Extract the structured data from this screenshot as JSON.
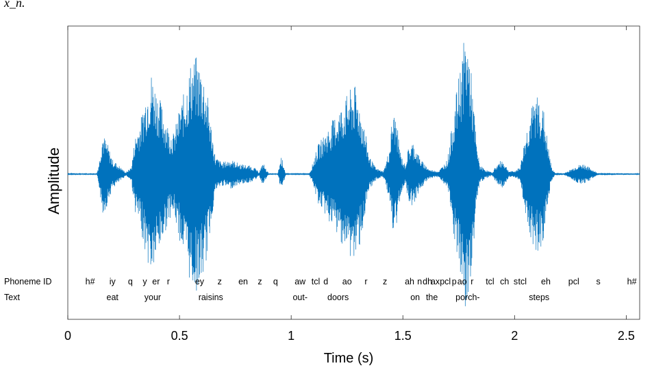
{
  "corner_text": "x_n.",
  "chart_data": {
    "type": "line",
    "title": "",
    "xlabel": "Time (s)",
    "ylabel": "Amplitude",
    "xlim": [
      0,
      2.56
    ],
    "xticks": [
      0,
      0.5,
      1,
      1.5,
      2,
      2.5
    ],
    "xtick_labels": [
      "0",
      "0.5",
      "1",
      "1.5",
      "2",
      "2.5"
    ],
    "grid": false,
    "series_color": "#0072BD",
    "row_labels": {
      "phoneme": "Phoneme ID",
      "text": "Text"
    },
    "phonemes": [
      {
        "t": 0.1,
        "label": "h#"
      },
      {
        "t": 0.2,
        "label": "iy"
      },
      {
        "t": 0.28,
        "label": "q"
      },
      {
        "t": 0.345,
        "label": "y"
      },
      {
        "t": 0.395,
        "label": "er"
      },
      {
        "t": 0.45,
        "label": "r"
      },
      {
        "t": 0.59,
        "label": "ey"
      },
      {
        "t": 0.68,
        "label": "z"
      },
      {
        "t": 0.785,
        "label": "en"
      },
      {
        "t": 0.86,
        "label": "z"
      },
      {
        "t": 0.93,
        "label": "q"
      },
      {
        "t": 1.04,
        "label": "aw"
      },
      {
        "t": 1.11,
        "label": "tcl"
      },
      {
        "t": 1.155,
        "label": "d"
      },
      {
        "t": 1.25,
        "label": "ao"
      },
      {
        "t": 1.335,
        "label": "r"
      },
      {
        "t": 1.42,
        "label": "z"
      },
      {
        "t": 1.53,
        "label": "ah"
      },
      {
        "t": 1.575,
        "label": "n"
      },
      {
        "t": 1.61,
        "label": "dh"
      },
      {
        "t": 1.645,
        "label": "ax"
      },
      {
        "t": 1.69,
        "label": "pcl"
      },
      {
        "t": 1.73,
        "label": "p"
      },
      {
        "t": 1.765,
        "label": "ao"
      },
      {
        "t": 1.81,
        "label": "r"
      },
      {
        "t": 1.89,
        "label": "tcl"
      },
      {
        "t": 1.955,
        "label": "ch"
      },
      {
        "t": 2.005,
        "label": "s"
      },
      {
        "t": 2.035,
        "label": "tcl"
      },
      {
        "t": 2.14,
        "label": "eh"
      },
      {
        "t": 2.265,
        "label": "pcl"
      },
      {
        "t": 2.375,
        "label": "s"
      },
      {
        "t": 2.525,
        "label": "h#"
      }
    ],
    "words": [
      {
        "t": 0.2,
        "label": "eat"
      },
      {
        "t": 0.38,
        "label": "your"
      },
      {
        "t": 0.64,
        "label": "raisins"
      },
      {
        "t": 1.04,
        "label": "out-"
      },
      {
        "t": 1.21,
        "label": "doors"
      },
      {
        "t": 1.555,
        "label": "on"
      },
      {
        "t": 1.63,
        "label": "the"
      },
      {
        "t": 1.79,
        "label": "porch-"
      },
      {
        "t": 2.11,
        "label": "steps"
      }
    ],
    "envelope": [
      [
        0.0,
        0.004
      ],
      [
        0.13,
        0.005
      ],
      [
        0.14,
        0.08
      ],
      [
        0.155,
        0.28
      ],
      [
        0.175,
        0.22
      ],
      [
        0.2,
        0.1
      ],
      [
        0.235,
        0.05
      ],
      [
        0.26,
        0.01
      ],
      [
        0.285,
        0.05
      ],
      [
        0.3,
        0.25
      ],
      [
        0.33,
        0.4
      ],
      [
        0.355,
        0.6
      ],
      [
        0.375,
        0.7
      ],
      [
        0.39,
        0.62
      ],
      [
        0.42,
        0.48
      ],
      [
        0.455,
        0.3
      ],
      [
        0.475,
        0.28
      ],
      [
        0.5,
        0.45
      ],
      [
        0.525,
        0.58
      ],
      [
        0.55,
        0.76
      ],
      [
        0.575,
        0.8
      ],
      [
        0.6,
        0.74
      ],
      [
        0.62,
        0.6
      ],
      [
        0.64,
        0.36
      ],
      [
        0.66,
        0.12
      ],
      [
        0.69,
        0.08
      ],
      [
        0.73,
        0.1
      ],
      [
        0.77,
        0.07
      ],
      [
        0.81,
        0.06
      ],
      [
        0.84,
        0.04
      ],
      [
        0.855,
        0.01
      ],
      [
        0.875,
        0.08
      ],
      [
        0.885,
        0.04
      ],
      [
        0.9,
        0.005
      ],
      [
        0.94,
        0.004
      ],
      [
        0.955,
        0.12
      ],
      [
        0.965,
        0.08
      ],
      [
        0.975,
        0.003
      ],
      [
        1.08,
        0.003
      ],
      [
        1.09,
        0.04
      ],
      [
        1.12,
        0.2
      ],
      [
        1.16,
        0.3
      ],
      [
        1.19,
        0.38
      ],
      [
        1.23,
        0.48
      ],
      [
        1.26,
        0.57
      ],
      [
        1.285,
        0.6
      ],
      [
        1.3,
        0.53
      ],
      [
        1.325,
        0.35
      ],
      [
        1.35,
        0.12
      ],
      [
        1.38,
        0.04
      ],
      [
        1.41,
        0.02
      ],
      [
        1.42,
        0.05
      ],
      [
        1.44,
        0.18
      ],
      [
        1.455,
        0.43
      ],
      [
        1.47,
        0.38
      ],
      [
        1.49,
        0.14
      ],
      [
        1.51,
        0.06
      ],
      [
        1.525,
        0.18
      ],
      [
        1.545,
        0.22
      ],
      [
        1.58,
        0.1
      ],
      [
        1.62,
        0.03
      ],
      [
        1.66,
        0.02
      ],
      [
        1.7,
        0.1
      ],
      [
        1.73,
        0.45
      ],
      [
        1.755,
        0.72
      ],
      [
        1.77,
        0.88
      ],
      [
        1.785,
        0.98
      ],
      [
        1.8,
        0.8
      ],
      [
        1.815,
        0.52
      ],
      [
        1.83,
        0.2
      ],
      [
        1.845,
        0.06
      ],
      [
        1.87,
        0.03
      ],
      [
        1.9,
        0.01
      ],
      [
        1.91,
        0.04
      ],
      [
        1.93,
        0.08
      ],
      [
        1.945,
        0.1
      ],
      [
        1.96,
        0.06
      ],
      [
        1.975,
        0.02
      ],
      [
        2.0,
        0.02
      ],
      [
        2.025,
        0.05
      ],
      [
        2.045,
        0.24
      ],
      [
        2.07,
        0.42
      ],
      [
        2.09,
        0.52
      ],
      [
        2.11,
        0.55
      ],
      [
        2.13,
        0.44
      ],
      [
        2.15,
        0.2
      ],
      [
        2.165,
        0.05
      ],
      [
        2.18,
        0.01
      ],
      [
        2.22,
        0.005
      ],
      [
        2.25,
        0.03
      ],
      [
        2.28,
        0.06
      ],
      [
        2.31,
        0.07
      ],
      [
        2.34,
        0.04
      ],
      [
        2.37,
        0.008
      ],
      [
        2.56,
        0.004
      ]
    ]
  }
}
